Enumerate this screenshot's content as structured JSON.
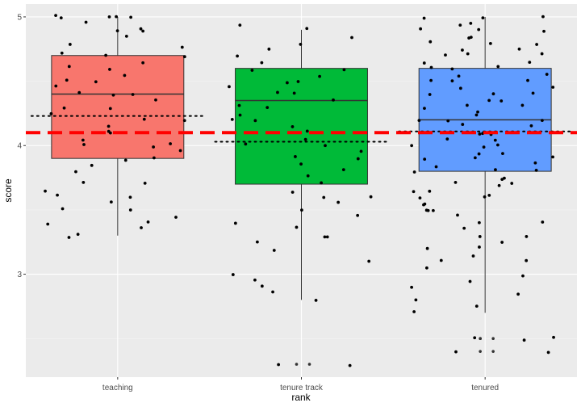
{
  "chart_data": {
    "type": "box",
    "xlabel": "rank",
    "ylabel": "score",
    "categories": [
      "teaching",
      "tenure track",
      "tenured"
    ],
    "ylim": [
      2.2,
      5.1
    ],
    "yticks": [
      3,
      4,
      5
    ],
    "grid": true,
    "overall_mean": 4.1,
    "boxes": [
      {
        "category": "teaching",
        "q1": 3.9,
        "median": 4.4,
        "q3": 4.7,
        "min": 3.3,
        "max": 5.0,
        "mean": 4.23,
        "fill": "#F8766D"
      },
      {
        "category": "tenure track",
        "q1": 3.7,
        "median": 4.35,
        "q3": 4.6,
        "min": 2.8,
        "max": 4.9,
        "mean": 4.03,
        "fill": "#00BA38"
      },
      {
        "category": "tenured",
        "q1": 3.8,
        "median": 4.2,
        "q3": 4.6,
        "min": 2.7,
        "max": 5.0,
        "mean": 4.11,
        "fill": "#619CFF"
      }
    ],
    "outliers": [
      {
        "category": "tenure track",
        "values": [
          2.3,
          2.3
        ]
      },
      {
        "category": "tenured",
        "values": [
          2.4,
          2.4,
          2.5,
          2.5,
          2.5
        ]
      }
    ],
    "jitter_points": [
      {
        "category": "teaching",
        "values": [
          5.0,
          5.0,
          5.0,
          5.0,
          5.0,
          4.95,
          4.92,
          4.9,
          4.9,
          4.85,
          4.8,
          4.75,
          4.72,
          4.7,
          4.7,
          4.65,
          4.6,
          4.6,
          4.55,
          4.5,
          4.5,
          4.45,
          4.4,
          4.4,
          4.4,
          4.35,
          4.3,
          4.3,
          4.25,
          4.2,
          4.2,
          4.15,
          4.1,
          4.1,
          4.05,
          4.0,
          4.0,
          4.0,
          3.95,
          3.9,
          3.9,
          3.85,
          3.8,
          3.7,
          3.7,
          3.65,
          3.6,
          3.6,
          3.55,
          3.5,
          3.5,
          3.45,
          3.4,
          3.4,
          3.35,
          3.3,
          3.3
        ]
      },
      {
        "category": "tenure track",
        "values": [
          4.95,
          4.9,
          4.85,
          4.8,
          4.75,
          4.7,
          4.65,
          4.6,
          4.6,
          4.55,
          4.5,
          4.5,
          4.45,
          4.4,
          4.4,
          4.35,
          4.3,
          4.3,
          4.25,
          4.2,
          4.2,
          4.15,
          4.1,
          4.05,
          4.0,
          4.0,
          3.95,
          3.9,
          3.9,
          3.85,
          3.8,
          3.75,
          3.7,
          3.65,
          3.6,
          3.6,
          3.55,
          3.5,
          3.45,
          3.4,
          3.35,
          3.3,
          3.3,
          3.25,
          3.2,
          3.1,
          3.0,
          2.95,
          2.9,
          2.85,
          2.8,
          2.3,
          2.3
        ]
      },
      {
        "category": "tenured",
        "values": [
          5.0,
          5.0,
          5.0,
          4.95,
          4.95,
          4.9,
          4.9,
          4.9,
          4.85,
          4.85,
          4.8,
          4.8,
          4.8,
          4.75,
          4.75,
          4.7,
          4.7,
          4.7,
          4.65,
          4.65,
          4.6,
          4.6,
          4.6,
          4.55,
          4.55,
          4.5,
          4.5,
          4.5,
          4.45,
          4.45,
          4.4,
          4.4,
          4.4,
          4.35,
          4.35,
          4.3,
          4.3,
          4.3,
          4.25,
          4.25,
          4.2,
          4.2,
          4.2,
          4.15,
          4.15,
          4.1,
          4.1,
          4.1,
          4.05,
          4.05,
          4.0,
          4.0,
          4.0,
          3.95,
          3.95,
          3.9,
          3.9,
          3.9,
          3.85,
          3.85,
          3.8,
          3.8,
          3.8,
          3.75,
          3.75,
          3.7,
          3.7,
          3.7,
          3.65,
          3.65,
          3.6,
          3.6,
          3.6,
          3.55,
          3.55,
          3.5,
          3.5,
          3.5,
          3.45,
          3.4,
          3.4,
          3.35,
          3.3,
          3.3,
          3.25,
          3.2,
          3.2,
          3.15,
          3.1,
          3.1,
          3.05,
          3.0,
          2.95,
          2.9,
          2.85,
          2.8,
          2.75,
          2.7,
          2.5,
          2.5,
          2.5,
          2.4,
          2.4
        ]
      }
    ]
  },
  "colors": {
    "panel_background": "#EBEBEB",
    "grid_major": "#FFFFFF",
    "mean_line": "#FF0000",
    "point": "#000000"
  }
}
